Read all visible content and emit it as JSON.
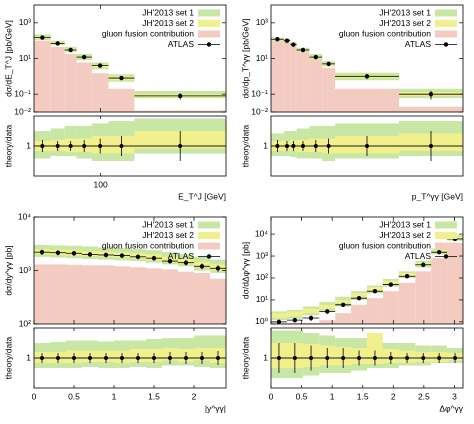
{
  "chart_data": [
    {
      "type": "histogram",
      "ylabel": "dσ/dE_T^J [pb/GeV]",
      "xlabel": "E_T^J [GeV]",
      "xlog": true,
      "ylog": true,
      "bins": [
        45,
        55,
        65,
        75,
        90,
        110,
        150,
        450
      ],
      "xlim": [
        45,
        450
      ],
      "xticks": [
        100
      ],
      "ylim": [
        0.01,
        10000
      ],
      "yticks": [
        {
          "value": 0.01,
          "label": "10⁻²"
        },
        {
          "value": 0.1,
          "label": "10⁻¹"
        },
        {
          "value": 10,
          "label": "10¹"
        },
        {
          "value": 1000,
          "label": "10³"
        }
      ],
      "series": [
        {
          "name": "JH'2013 set 1",
          "color": "#c8e6a4",
          "low": [
            110,
            55,
            22,
            8,
            2.5,
            0.5,
            0.06
          ],
          "high": [
            220,
            100,
            45,
            18,
            6,
            1.3,
            0.15
          ]
        },
        {
          "name": "JH'2013 set 2",
          "color": "#f2f08c",
          "low": [
            130,
            60,
            25,
            10,
            3,
            0.6,
            0.07
          ],
          "high": [
            170,
            80,
            35,
            13,
            4.5,
            1,
            0.1
          ]
        },
        {
          "name": "gluon fusion contribution",
          "color": "#f4cbc0",
          "values": [
            100,
            45,
            18,
            6,
            1.5,
            0.2,
            0.012
          ]
        },
        {
          "name": "ATLAS",
          "color": "#000000",
          "values": [
            150,
            70,
            30,
            12,
            4,
            0.8,
            0.08
          ],
          "errors": [
            30,
            12,
            5,
            2,
            0.8,
            0.2,
            0.03
          ]
        }
      ],
      "ratio": {
        "ylabel": "theory/data",
        "ylim": [
          0.4,
          1.6
        ],
        "yticks": [
          1
        ],
        "series": [
          {
            "low": [
              0.75,
              0.8,
              0.8,
              0.75,
              0.7,
              0.7,
              0.85
            ],
            "high": [
              1.3,
              1.35,
              1.4,
              1.4,
              1.45,
              1.5,
              1.55
            ]
          },
          {
            "low": [
              0.9,
              0.9,
              0.88,
              0.88,
              0.85,
              0.85,
              0.95
            ],
            "high": [
              1.1,
              1.12,
              1.15,
              1.15,
              1.2,
              1.2,
              1.3
            ]
          },
          {
            "values": [
              1,
              1,
              1,
              1,
              1,
              1,
              1
            ],
            "errors": [
              0.12,
              0.1,
              0.1,
              0.12,
              0.15,
              0.2,
              0.3
            ]
          }
        ]
      }
    },
    {
      "type": "histogram",
      "ylabel": "dσ/dp_T^γγ [pb/GeV]",
      "xlabel": "p_T^γγ [GeV]",
      "xlog": false,
      "ylog": true,
      "bins": [
        0,
        20,
        30,
        40,
        60,
        80,
        100,
        200,
        300
      ],
      "xlim": [
        0,
        300
      ],
      "ylim": [
        0.01,
        10000
      ],
      "yticks": [
        {
          "value": 0.01,
          "label": "10⁻²"
        },
        {
          "value": 0.1,
          "label": "10⁻¹"
        },
        {
          "value": 10,
          "label": "10¹"
        },
        {
          "value": 1000,
          "label": "10³"
        }
      ],
      "series": [
        {
          "name": "JH'2013 set 1",
          "color": "#c8e6a4",
          "low": [
            90,
            75,
            45,
            22,
            8,
            3.5,
            0.6,
            0.06
          ],
          "high": [
            150,
            130,
            80,
            40,
            18,
            7,
            1.6,
            0.2
          ]
        },
        {
          "name": "JH'2013 set 2",
          "color": "#f2f08c",
          "low": [
            100,
            85,
            50,
            26,
            10,
            4,
            0.8,
            0.08
          ],
          "high": [
            130,
            110,
            65,
            33,
            14,
            5.5,
            1.2,
            0.13
          ]
        },
        {
          "name": "gluon fusion contribution",
          "color": "#f4cbc0",
          "values": [
            100,
            80,
            45,
            22,
            8,
            3,
            0.2,
            0.02
          ]
        },
        {
          "name": "ATLAS",
          "color": "#000000",
          "values": [
            120,
            100,
            60,
            30,
            12,
            5,
            1,
            0.1
          ],
          "errors": [
            25,
            20,
            12,
            6,
            3,
            1.2,
            0.3,
            0.05
          ]
        }
      ],
      "ratio": {
        "ylabel": "theory/data",
        "ylim": [
          0.4,
          1.6
        ],
        "yticks": [
          1
        ],
        "series": [
          {
            "low": [
              0.8,
              0.8,
              0.78,
              0.75,
              0.75,
              0.7,
              0.75,
              0.8
            ],
            "high": [
              1.25,
              1.3,
              1.3,
              1.35,
              1.4,
              1.4,
              1.45,
              1.5
            ]
          },
          {
            "low": [
              0.9,
              0.9,
              0.9,
              0.88,
              0.88,
              0.85,
              0.85,
              0.9
            ],
            "high": [
              1.1,
              1.1,
              1.12,
              1.12,
              1.15,
              1.15,
              1.2,
              1.25
            ]
          },
          {
            "values": [
              1,
              1,
              1,
              1,
              1,
              1,
              1,
              1
            ],
            "errors": [
              0.12,
              0.1,
              0.1,
              0.1,
              0.12,
              0.15,
              0.2,
              0.3
            ]
          }
        ]
      }
    },
    {
      "type": "histogram",
      "ylabel": "dσ/dy^γγ [pb]",
      "xlabel": "|y^γγ|",
      "xlog": false,
      "ylog": true,
      "bins": [
        0,
        0.2,
        0.4,
        0.6,
        0.8,
        1,
        1.2,
        1.4,
        1.6,
        1.8,
        2,
        2.2,
        2.4
      ],
      "xlim": [
        0,
        2.4
      ],
      "xticks": [
        0,
        0.5,
        1,
        1.5,
        2
      ],
      "ylim": [
        100,
        10000
      ],
      "yticks": [
        {
          "value": 100,
          "label": "10²"
        },
        {
          "value": 1000,
          "label": "10³"
        },
        {
          "value": 10000,
          "label": "10⁴"
        }
      ],
      "series": [
        {
          "name": "JH'2013 set 1",
          "color": "#c8e6a4",
          "low": [
            1800,
            1750,
            1700,
            1650,
            1600,
            1550,
            1500,
            1400,
            1300,
            1200,
            1000,
            900
          ],
          "high": [
            3000,
            2950,
            2900,
            2800,
            2700,
            2650,
            2500,
            2400,
            2200,
            2000,
            1800,
            1600
          ]
        },
        {
          "name": "JH'2013 set 2",
          "color": "#f2f08c",
          "low": [
            2000,
            1950,
            1900,
            1850,
            1800,
            1750,
            1650,
            1550,
            1450,
            1300,
            1150,
            1000
          ],
          "high": [
            2500,
            2450,
            2400,
            2300,
            2250,
            2200,
            2100,
            2000,
            1800,
            1650,
            1450,
            1300
          ]
        },
        {
          "name": "gluon fusion contribution",
          "color": "#f4cbc0",
          "values": [
            1300,
            1300,
            1280,
            1250,
            1250,
            1200,
            1150,
            1100,
            1050,
            950,
            900,
            700
          ]
        },
        {
          "name": "ATLAS",
          "color": "#000000",
          "values": [
            2200,
            2150,
            2100,
            2000,
            1950,
            1900,
            1800,
            1700,
            1500,
            1400,
            1200,
            1100
          ],
          "errors": [
            250,
            230,
            220,
            200,
            200,
            190,
            180,
            180,
            170,
            160,
            150,
            150
          ]
        }
      ],
      "ratio": {
        "ylabel": "theory/data",
        "ylim": [
          0.4,
          1.6
        ],
        "yticks": [
          1
        ],
        "series": [
          {
            "low": [
              0.8,
              0.8,
              0.8,
              0.82,
              0.8,
              0.8,
              0.82,
              0.8,
              0.85,
              0.85,
              0.82,
              0.8
            ],
            "high": [
              1.3,
              1.32,
              1.35,
              1.35,
              1.33,
              1.35,
              1.35,
              1.38,
              1.4,
              1.4,
              1.45,
              1.45
            ]
          },
          {
            "low": [
              0.9,
              0.9,
              0.9,
              0.92,
              0.92,
              0.9,
              0.92,
              0.92,
              0.95,
              0.92,
              0.95,
              0.9
            ],
            "high": [
              1.12,
              1.12,
              1.15,
              1.15,
              1.15,
              1.15,
              1.18,
              1.18,
              1.2,
              1.18,
              1.2,
              1.2
            ]
          },
          {
            "values": [
              1,
              1,
              1,
              1,
              1,
              1,
              1,
              1,
              1,
              1,
              1,
              1
            ],
            "errors": [
              0.1,
              0.1,
              0.1,
              0.1,
              0.1,
              0.1,
              0.1,
              0.1,
              0.12,
              0.12,
              0.12,
              0.14
            ]
          }
        ]
      }
    },
    {
      "type": "histogram",
      "ylabel": "dσ/dΔφ^γγ [pb]",
      "xlabel": "Δφ^γγ",
      "xlog": false,
      "ylog": true,
      "bins": [
        0,
        0.26,
        0.52,
        0.79,
        1.05,
        1.31,
        1.57,
        1.83,
        2.09,
        2.36,
        2.62,
        2.88,
        3.14
      ],
      "xlim": [
        0,
        3.14
      ],
      "xticks": [
        0,
        0.5,
        1,
        1.5,
        2,
        2.5,
        3
      ],
      "ylim": [
        0.8,
        60000
      ],
      "yticks": [
        {
          "value": 1,
          "label": "10⁰"
        },
        {
          "value": 10,
          "label": "10¹"
        },
        {
          "value": 100,
          "label": "10²"
        },
        {
          "value": 1000,
          "label": "10³"
        },
        {
          "value": 10000,
          "label": "10⁴"
        }
      ],
      "series": [
        {
          "name": "JH'2013 set 1",
          "color": "#c8e6a4",
          "low": [
            1.2,
            1.4,
            2,
            3,
            5,
            10,
            20,
            40,
            100,
            300,
            1200,
            5000
          ],
          "high": [
            3,
            3.5,
            5,
            8,
            14,
            25,
            45,
            90,
            200,
            600,
            2200,
            9000
          ]
        },
        {
          "name": "JH'2013 set 2",
          "color": "#f2f08c",
          "low": [
            1.5,
            1.8,
            2.5,
            4,
            7,
            13,
            25,
            50,
            120,
            380,
            1400,
            5800
          ],
          "high": [
            2.5,
            3,
            4,
            6,
            10,
            20,
            38,
            75,
            170,
            500,
            1900,
            7500
          ]
        },
        {
          "name": "gluon fusion contribution",
          "color": "#f4cbc0",
          "values": [
            0.9,
            0.9,
            0.9,
            1.2,
            2.5,
            6,
            12,
            25,
            60,
            200,
            800,
            4000
          ]
        },
        {
          "name": "ATLAS",
          "color": "#000000",
          "values": [
            1,
            1.2,
            1.5,
            3,
            6,
            12,
            25,
            50,
            120,
            400,
            1500,
            6000
          ],
          "errors": [
            0.15,
            0.2,
            0.4,
            0.7,
            1.2,
            2,
            4,
            7,
            15,
            50,
            180,
            700
          ]
        }
      ],
      "ratio": {
        "ylabel": "theory/data",
        "ylim": [
          0.4,
          1.6
        ],
        "yticks": [
          1
        ],
        "series": [
          {
            "low": [
              0.6,
              0.6,
              0.65,
              0.7,
              0.7,
              0.75,
              0.8,
              0.8,
              0.85,
              0.85,
              0.9,
              0.9
            ],
            "high": [
              1.55,
              1.55,
              1.5,
              1.45,
              1.4,
              1.4,
              1.35,
              1.3,
              1.3,
              1.25,
              1.25,
              1.2
            ]
          },
          {
            "low": [
              0.8,
              0.8,
              0.82,
              0.85,
              0.85,
              0.88,
              0.88,
              0.9,
              0.9,
              0.92,
              0.92,
              0.95
            ],
            "high": [
              1.3,
              1.3,
              1.28,
              1.25,
              1.22,
              1.2,
              1.5,
              1.18,
              1.15,
              1.12,
              1.12,
              1.1
            ]
          },
          {
            "values": [
              1,
              1,
              1,
              1,
              1,
              1,
              1,
              1,
              1,
              1,
              1,
              1
            ],
            "errors": [
              0.3,
              0.3,
              0.25,
              0.2,
              0.2,
              0.15,
              0.15,
              0.12,
              0.1,
              0.1,
              0.1,
              0.1
            ]
          }
        ]
      }
    }
  ]
}
